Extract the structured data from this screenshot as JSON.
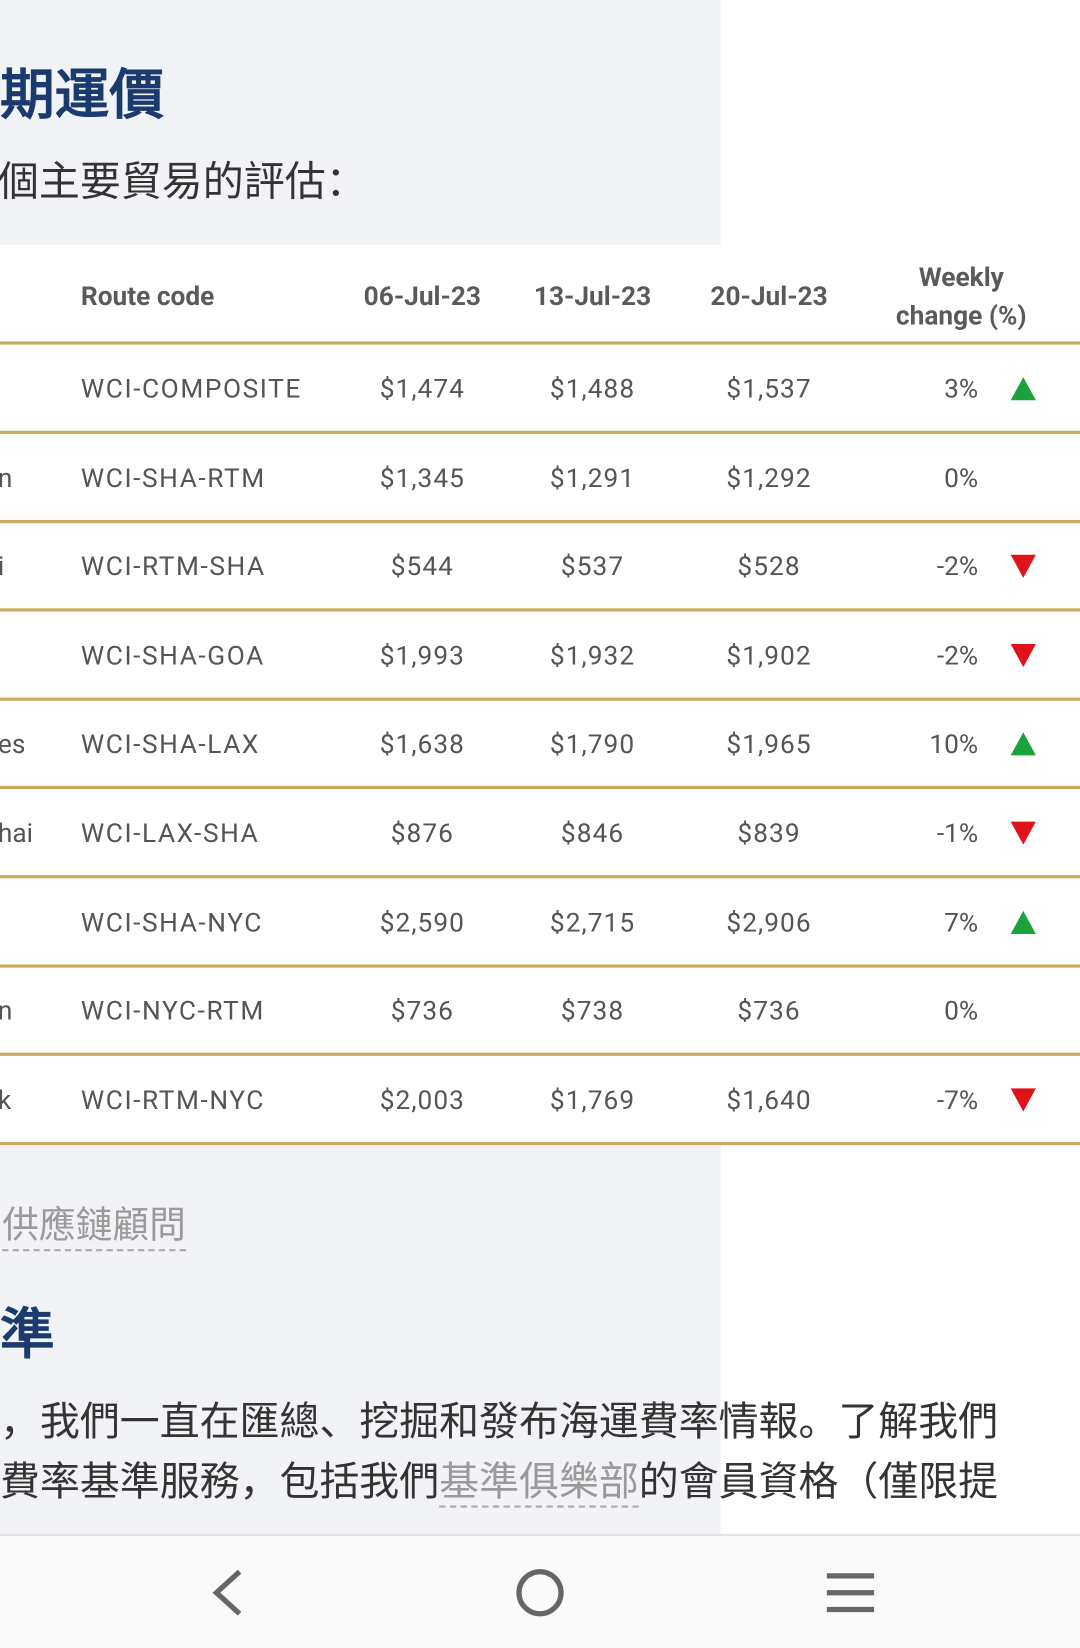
{
  "header": {
    "title": "期運價",
    "subtitle": "個主要貿易的評估："
  },
  "table": {
    "columns": [
      "Route code",
      "06-Jul-23",
      "13-Jul-23",
      "20-Jul-23",
      "Weekly change (%)"
    ],
    "rows": [
      {
        "code": "WCI-COMPOSITE",
        "values": [
          "$1,474",
          "$1,488",
          "$1,537"
        ],
        "change": "3%",
        "trend": "up"
      },
      {
        "route": "n",
        "code": "WCI-SHA-RTM",
        "values": [
          "$1,345",
          "$1,291",
          "$1,292"
        ],
        "change": "0%"
      },
      {
        "route": "i",
        "code": "WCI-RTM-SHA",
        "values": [
          "$544",
          "$537",
          "$528"
        ],
        "change": "-2%",
        "trend": "down"
      },
      {
        "code": "WCI-SHA-GOA",
        "values": [
          "$1,993",
          "$1,932",
          "$1,902"
        ],
        "change": "-2%",
        "trend": "down"
      },
      {
        "route": "es",
        "code": "WCI-SHA-LAX",
        "values": [
          "$1,638",
          "$1,790",
          "$1,965"
        ],
        "change": "10%",
        "trend": "up"
      },
      {
        "route": "hai",
        "code": "WCI-LAX-SHA",
        "values": [
          "$876",
          "$846",
          "$839"
        ],
        "change": "-1%",
        "trend": "down"
      },
      {
        "code": "WCI-SHA-NYC",
        "values": [
          "$2,590",
          "$2,715",
          "$2,906"
        ],
        "change": "7%",
        "trend": "up"
      },
      {
        "route": "n",
        "code": "WCI-NYC-RTM",
        "values": [
          "$736",
          "$738",
          "$736"
        ],
        "change": "0%"
      },
      {
        "route": "k",
        "code": "WCI-RTM-NYC",
        "values": [
          "$2,003",
          "$1,769",
          "$1,640"
        ],
        "change": "-7%",
        "trend": "down"
      }
    ]
  },
  "footer": {
    "link": "供應鏈顧問",
    "heading": "準",
    "line1": "，我們一直在匯總、挖掘和發布海運費率情報。了解我們",
    "line2_start": "費率基準服務，包括我們",
    "line2_link": "基準俱樂部",
    "line2_end": "的會員資格（僅限提"
  }
}
